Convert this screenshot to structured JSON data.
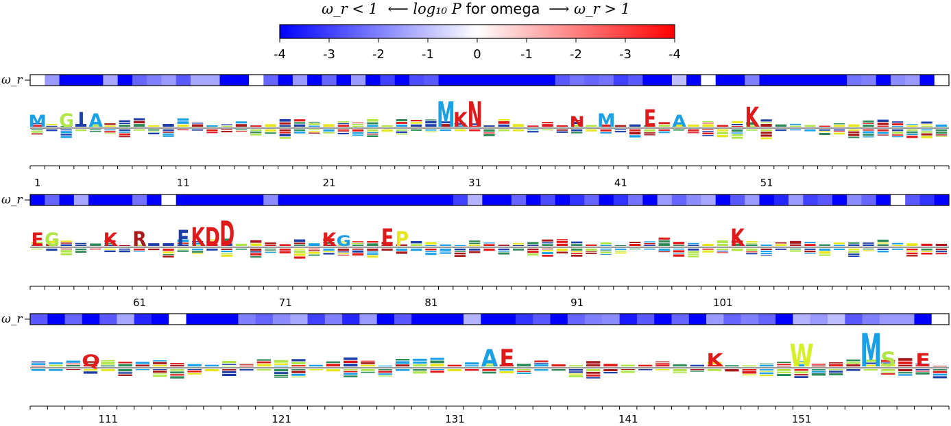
{
  "chart_data": {
    "type": "sequence-logo",
    "colorbar": {
      "title_left": "ω_r < 1",
      "title_mid": "⟵ log₁₀ P ",
      "title_word": "for omega",
      "title_right": "⟶ ω_r > 1",
      "tick_labels": [
        "-4",
        "-3",
        "-2",
        "-1",
        "0",
        "-1",
        "-2",
        "-3",
        "-4"
      ],
      "colors": {
        "low": "#0000ff",
        "mid": "#ffffff",
        "high": "#ff0000"
      }
    },
    "omega_label": "ω_r",
    "rows": [
      {
        "start": 1,
        "end": 53,
        "position_labels": [
          "1",
          "11",
          "21",
          "31",
          "41",
          "51"
        ],
        "omega_values": [
          0,
          -1.6,
          -4,
          -4,
          -4,
          -1.4,
          -4,
          -2.4,
          -2.0,
          -1.6,
          -2.6,
          -1.4,
          -1.4,
          -4,
          -4,
          0,
          -2.4,
          -4,
          -1.6,
          -4,
          -2.4,
          -4,
          -1.6,
          -4,
          -3.0,
          -4,
          -2.8,
          -2.6,
          -4,
          -4,
          -4,
          -4,
          -4,
          -4,
          -4,
          -4,
          -2.6,
          -2.2,
          -2.4,
          -2.2,
          -3.0,
          -2.6,
          -4,
          -4,
          -1.0,
          -4,
          0,
          -4,
          -4,
          -2.0,
          -4,
          -4,
          -4,
          -4,
          -4,
          -4,
          -2.2,
          -2.0,
          -4,
          -1.8,
          -1.6,
          -4,
          0
        ],
        "featured_letters": [
          {
            "pos": 1,
            "letter": "M",
            "bits": 0.4,
            "color": "#1aa0e6"
          },
          {
            "pos": 3,
            "letter": "G",
            "bits": 0.5,
            "color": "#b0e64a"
          },
          {
            "pos": 4,
            "letter": "I",
            "bits": 0.6,
            "color": "#1f3fa8"
          },
          {
            "pos": 5,
            "letter": "A",
            "bits": 0.5,
            "color": "#1aa0e6"
          },
          {
            "pos": 29,
            "letter": "M",
            "bits": 1.4,
            "color": "#1aa0e6"
          },
          {
            "pos": 30,
            "letter": "K",
            "bits": 0.6,
            "color": "#e01a1a"
          },
          {
            "pos": 31,
            "letter": "N",
            "bits": 1.4,
            "color": "#e01a1a"
          },
          {
            "pos": 38,
            "letter": "N",
            "bits": 0.3,
            "color": "#e01a1a"
          },
          {
            "pos": 40,
            "letter": "M",
            "bits": 0.5,
            "color": "#1aa0e6"
          },
          {
            "pos": 43,
            "letter": "E",
            "bits": 0.8,
            "color": "#e01a1a"
          },
          {
            "pos": 45,
            "letter": "A",
            "bits": 0.4,
            "color": "#1aa0e6"
          },
          {
            "pos": 50,
            "letter": "K",
            "bits": 1.0,
            "color": "#e01a1a"
          }
        ]
      },
      {
        "start": 54,
        "end": 106,
        "position_labels": [
          "61",
          "71",
          "81",
          "91",
          "101"
        ],
        "omega_values": [
          -4,
          -2.4,
          -4,
          -1.4,
          -4,
          -4,
          -4,
          -2.2,
          -4,
          0,
          -4,
          -4,
          -4,
          -4,
          -4,
          -4,
          -1.8,
          -4,
          -4,
          -4,
          -4,
          -4,
          -4,
          -4,
          -4,
          -4,
          -4,
          -4,
          -4,
          -3.0,
          -1.2,
          -4,
          -4,
          -2.4,
          -4,
          -2.8,
          -4,
          -3.2,
          -2.4,
          -4,
          -3.2,
          -2.2,
          -4,
          -1.6,
          -2.4,
          -1.8,
          -1.4,
          -4,
          -2.6,
          -1.6,
          -4,
          -3.4,
          -1.6,
          -3.0,
          -2.6,
          -4,
          -1.8,
          -2.4,
          -4,
          0,
          -2.6,
          -3.2,
          -4
        ],
        "featured_letters": [
          {
            "pos": 54,
            "letter": "E",
            "bits": 0.5,
            "color": "#e01a1a"
          },
          {
            "pos": 55,
            "letter": "G",
            "bits": 0.5,
            "color": "#b0e64a"
          },
          {
            "pos": 59,
            "letter": "K",
            "bits": 0.5,
            "color": "#e01a1a"
          },
          {
            "pos": 61,
            "letter": "R",
            "bits": 0.6,
            "color": "#a81a1a"
          },
          {
            "pos": 64,
            "letter": "F",
            "bits": 0.7,
            "color": "#1f3fa8"
          },
          {
            "pos": 65,
            "letter": "K",
            "bits": 0.9,
            "color": "#e01a1a"
          },
          {
            "pos": 66,
            "letter": "D",
            "bits": 0.9,
            "color": "#e01a1a"
          },
          {
            "pos": 67,
            "letter": "D",
            "bits": 1.4,
            "color": "#e01a1a"
          },
          {
            "pos": 74,
            "letter": "K",
            "bits": 0.5,
            "color": "#e01a1a"
          },
          {
            "pos": 75,
            "letter": "G",
            "bits": 0.3,
            "color": "#1aa0e6"
          },
          {
            "pos": 78,
            "letter": "E",
            "bits": 0.8,
            "color": "#e01a1a"
          },
          {
            "pos": 79,
            "letter": "P",
            "bits": 0.6,
            "color": "#e6e61a"
          },
          {
            "pos": 102,
            "letter": "K",
            "bits": 0.8,
            "color": "#e01a1a"
          }
        ]
      },
      {
        "start": 107,
        "end": 158,
        "position_labels": [
          "111",
          "121",
          "131",
          "141",
          "151"
        ],
        "omega_values": [
          -2.6,
          -4,
          -2.4,
          -4,
          -2.6,
          -1.4,
          -3.4,
          -4,
          0,
          -4,
          -4,
          -4,
          -2.0,
          -2.4,
          -1.8,
          -1.4,
          -3.0,
          -2.0,
          -3.4,
          -1.6,
          -4,
          -2.6,
          -4,
          -4,
          -4,
          -1.2,
          -4,
          -4,
          -3.2,
          -2.6,
          -4,
          -2.4,
          -2.0,
          -1.8,
          -3.6,
          -2.6,
          -4,
          -2.4,
          -4,
          -1.6,
          -2.4,
          -2.0,
          -2.4,
          -4,
          -1.2,
          -1.6,
          -1.0,
          -2.6,
          -2.0,
          -1.6,
          -1.6,
          -4,
          0
        ],
        "featured_letters": [
          {
            "pos": 110,
            "letter": "Q",
            "bits": 0.4,
            "color": "#e01a1a"
          },
          {
            "pos": 133,
            "letter": "A",
            "bits": 0.8,
            "color": "#1aa0e6"
          },
          {
            "pos": 134,
            "letter": "E",
            "bits": 0.8,
            "color": "#e01a1a"
          },
          {
            "pos": 146,
            "letter": "K",
            "bits": 0.5,
            "color": "#e01a1a"
          },
          {
            "pos": 151,
            "letter": "W",
            "bits": 1.2,
            "color": "#d6f028"
          },
          {
            "pos": 155,
            "letter": "M",
            "bits": 2.0,
            "color": "#1aa0e6"
          },
          {
            "pos": 156,
            "letter": "S",
            "bits": 0.6,
            "color": "#b0e64a"
          },
          {
            "pos": 158,
            "letter": "E",
            "bits": 0.5,
            "color": "#e01a1a"
          }
        ]
      }
    ]
  }
}
